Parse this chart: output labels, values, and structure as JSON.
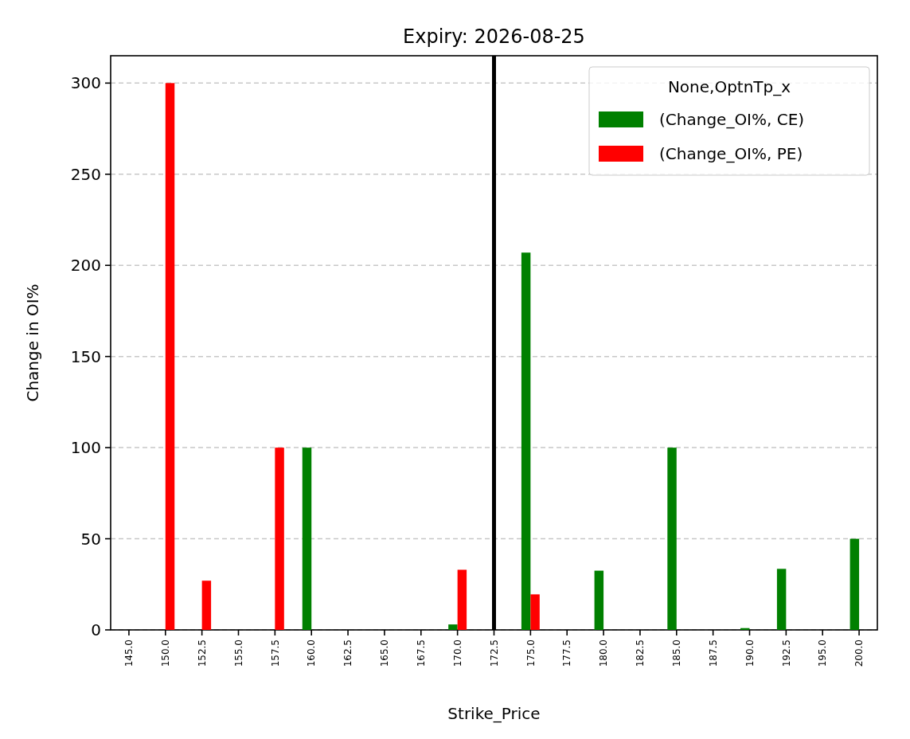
{
  "chart_data": {
    "type": "bar",
    "title": "Expiry: 2026-08-25",
    "xlabel": "Strike_Price",
    "ylabel": "Change in OI%",
    "legend_title": "None,OptnTp_x",
    "categories": [
      "145.0",
      "150.0",
      "152.5",
      "155.0",
      "157.5",
      "160.0",
      "162.5",
      "165.0",
      "167.5",
      "170.0",
      "172.5",
      "175.0",
      "177.5",
      "180.0",
      "182.5",
      "185.0",
      "187.5",
      "190.0",
      "192.5",
      "195.0",
      "200.0"
    ],
    "series": [
      {
        "name": "(Change_OI%, CE)",
        "color": "#008000",
        "values": [
          null,
          null,
          null,
          null,
          null,
          100,
          null,
          null,
          null,
          3,
          null,
          207,
          null,
          32.5,
          null,
          100,
          null,
          1,
          33.5,
          null,
          50
        ]
      },
      {
        "name": "(Change_OI%, PE)",
        "color": "#ff0000",
        "values": [
          null,
          300,
          27,
          null,
          100,
          null,
          null,
          null,
          null,
          33,
          null,
          19.5,
          null,
          null,
          null,
          null,
          null,
          null,
          null,
          null,
          null
        ]
      }
    ],
    "ylim": [
      0,
      315
    ],
    "yticks": [
      0,
      50,
      100,
      150,
      200,
      250,
      300
    ],
    "grid": "y",
    "legend": "top right",
    "ref_lines": [
      {
        "axis": "x",
        "value": "172.5",
        "color": "#000000"
      }
    ]
  }
}
